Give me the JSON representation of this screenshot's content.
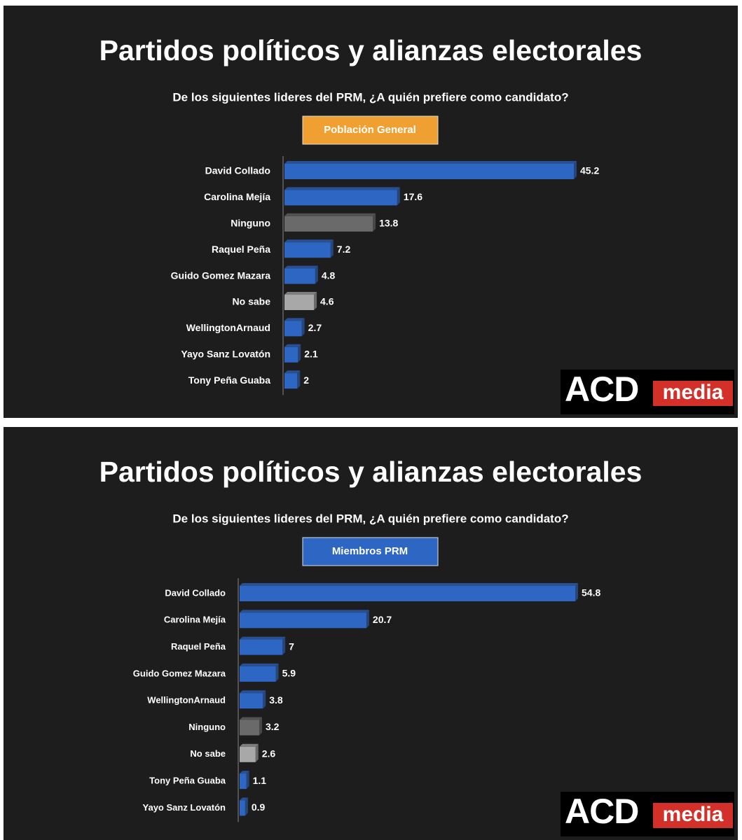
{
  "chart_data": [
    {
      "type": "bar",
      "orientation": "horizontal",
      "title": "Partidos políticos y alianzas electorales",
      "subtitle": "De los siguientes lideres del PRM, ¿A quién prefiere como candidato?",
      "segment_label": "Población General",
      "segment_color": "#f0a030",
      "categories": [
        "David Collado",
        "Carolina Mejía",
        "Ninguno",
        "Raquel Peña",
        "Guido Gomez Mazara",
        "No sabe",
        "WellingtonArnaud",
        "Yayo Sanz Lovatón",
        "Tony Peña Guaba"
      ],
      "values": [
        45.2,
        17.6,
        13.8,
        7.2,
        4.8,
        4.6,
        2.7,
        2.1,
        2
      ],
      "colors": [
        "#2e66c4",
        "#2e66c4",
        "#6a6a6a",
        "#2e66c4",
        "#2e66c4",
        "#a8a8a8",
        "#2e66c4",
        "#2e66c4",
        "#2e66c4"
      ]
    },
    {
      "type": "bar",
      "orientation": "horizontal",
      "title": "Partidos políticos y alianzas electorales",
      "subtitle": "De los siguientes lideres del PRM, ¿A quién prefiere como candidato?",
      "segment_label": "Miembros PRM",
      "segment_color": "#2e66c4",
      "categories": [
        "David Collado",
        "Carolina Mejía",
        "Raquel Peña",
        "Guido Gomez Mazara",
        "WellingtonArnaud",
        "Ninguno",
        "No sabe",
        "Tony Peña Guaba",
        "Yayo Sanz Lovatón"
      ],
      "values": [
        54.8,
        20.7,
        7,
        5.9,
        3.8,
        3.2,
        2.6,
        1.1,
        0.9
      ],
      "colors": [
        "#2e66c4",
        "#2e66c4",
        "#2e66c4",
        "#2e66c4",
        "#2e66c4",
        "#6a6a6a",
        "#a8a8a8",
        "#2e66c4",
        "#2e66c4"
      ]
    }
  ],
  "brand": [
    "ACD",
    "media"
  ]
}
